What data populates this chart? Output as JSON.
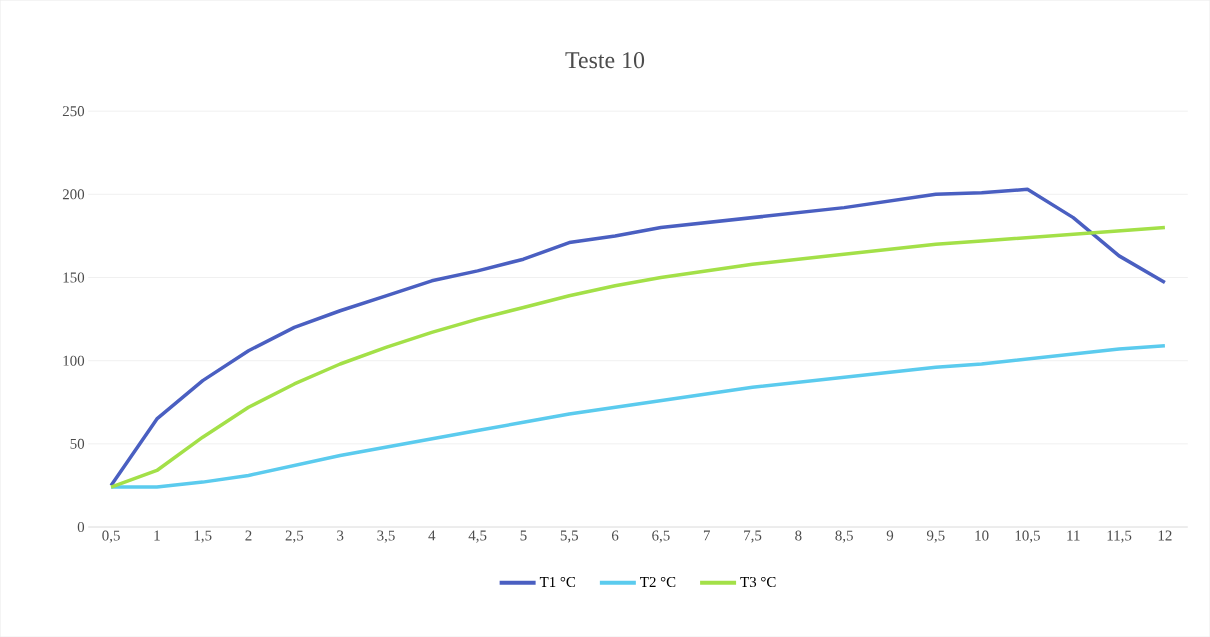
{
  "chart_data": {
    "type": "line",
    "title": "Teste 10",
    "categories": [
      "0,5",
      "1",
      "1,5",
      "2",
      "2,5",
      "3",
      "3,5",
      "4",
      "4,5",
      "5",
      "5,5",
      "6",
      "6,5",
      "7",
      "7,5",
      "8",
      "8,5",
      "9",
      "9,5",
      "10",
      "10,5",
      "11",
      "11,5",
      "12"
    ],
    "series": [
      {
        "name": "T1 °C",
        "color": "#4a5fc1",
        "values": [
          25,
          65,
          88,
          106,
          120,
          130,
          139,
          148,
          154,
          161,
          171,
          175,
          180,
          183,
          186,
          189,
          192,
          196,
          200,
          201,
          203,
          186,
          163,
          147
        ]
      },
      {
        "name": "T2 °C",
        "color": "#5bcbee",
        "values": [
          24,
          24,
          27,
          31,
          37,
          43,
          48,
          53,
          58,
          63,
          68,
          72,
          76,
          80,
          84,
          87,
          90,
          93,
          96,
          98,
          101,
          104,
          107,
          109
        ]
      },
      {
        "name": "T3 °C",
        "color": "#a3e048",
        "values": [
          24,
          34,
          54,
          72,
          86,
          98,
          108,
          117,
          125,
          132,
          139,
          145,
          150,
          154,
          158,
          161,
          164,
          167,
          170,
          172,
          174,
          176,
          178,
          180
        ]
      }
    ],
    "ylim": [
      0,
      250
    ],
    "yticks": [
      0,
      50,
      100,
      150,
      200,
      250
    ],
    "grid": "y",
    "legend": "bottom",
    "marker": "none",
    "line_style": "solid"
  }
}
